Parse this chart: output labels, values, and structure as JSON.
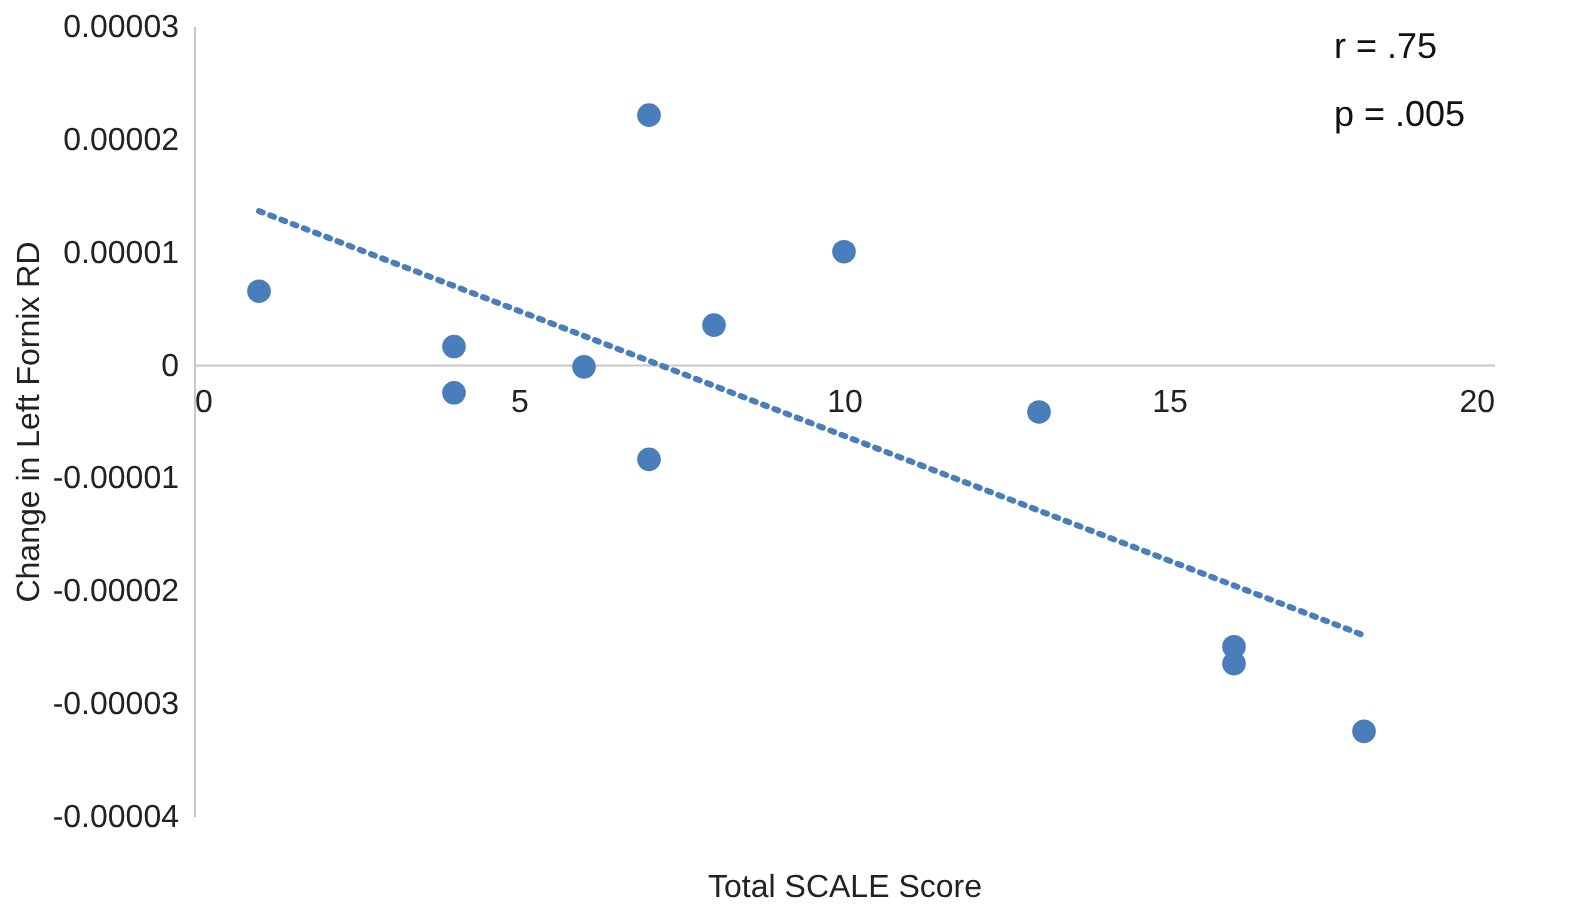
{
  "chart_data": {
    "type": "scatter",
    "xlabel": "Total SCALE Score",
    "ylabel": "Change in Left Fornix RD",
    "annotations": [
      "r = .75",
      "p = .005"
    ],
    "series": [
      {
        "color": "#4a7ebb",
        "marker": "circle",
        "x": [
          1,
          4,
          4,
          6,
          7,
          7,
          8,
          10,
          13,
          16,
          16,
          18
        ],
        "values": [
          6.5e-06,
          1.6e-06,
          -2.5e-06,
          -2e-07,
          2.21e-05,
          -8.4e-06,
          3.5e-06,
          1e-05,
          -4.2e-06,
          -2.5e-05,
          -2.65e-05,
          -3.25e-05
        ]
      },
      {
        "type": "line",
        "color": "#4a7ebb",
        "line_style": "dotted",
        "x": [
          1,
          18
        ],
        "values": [
          1.36e-05,
          -2.4e-05
        ]
      }
    ],
    "xlim": [
      0,
      20
    ],
    "xticks": [
      0,
      5,
      10,
      15,
      20
    ],
    "ylim": [
      -4e-05,
      3e-05
    ],
    "yticks": [
      {
        "value": -4e-05,
        "label": "-0.00004"
      },
      {
        "value": -3e-05,
        "label": "-0.00003"
      },
      {
        "value": -2e-05,
        "label": "-0.00002"
      },
      {
        "value": -1e-05,
        "label": "-0.00001"
      },
      0,
      {
        "value": 1e-05,
        "label": "0.00001"
      },
      {
        "value": 2e-05,
        "label": "0.00002"
      },
      {
        "value": 3e-05,
        "label": "0.00003"
      }
    ],
    "grid": false
  }
}
